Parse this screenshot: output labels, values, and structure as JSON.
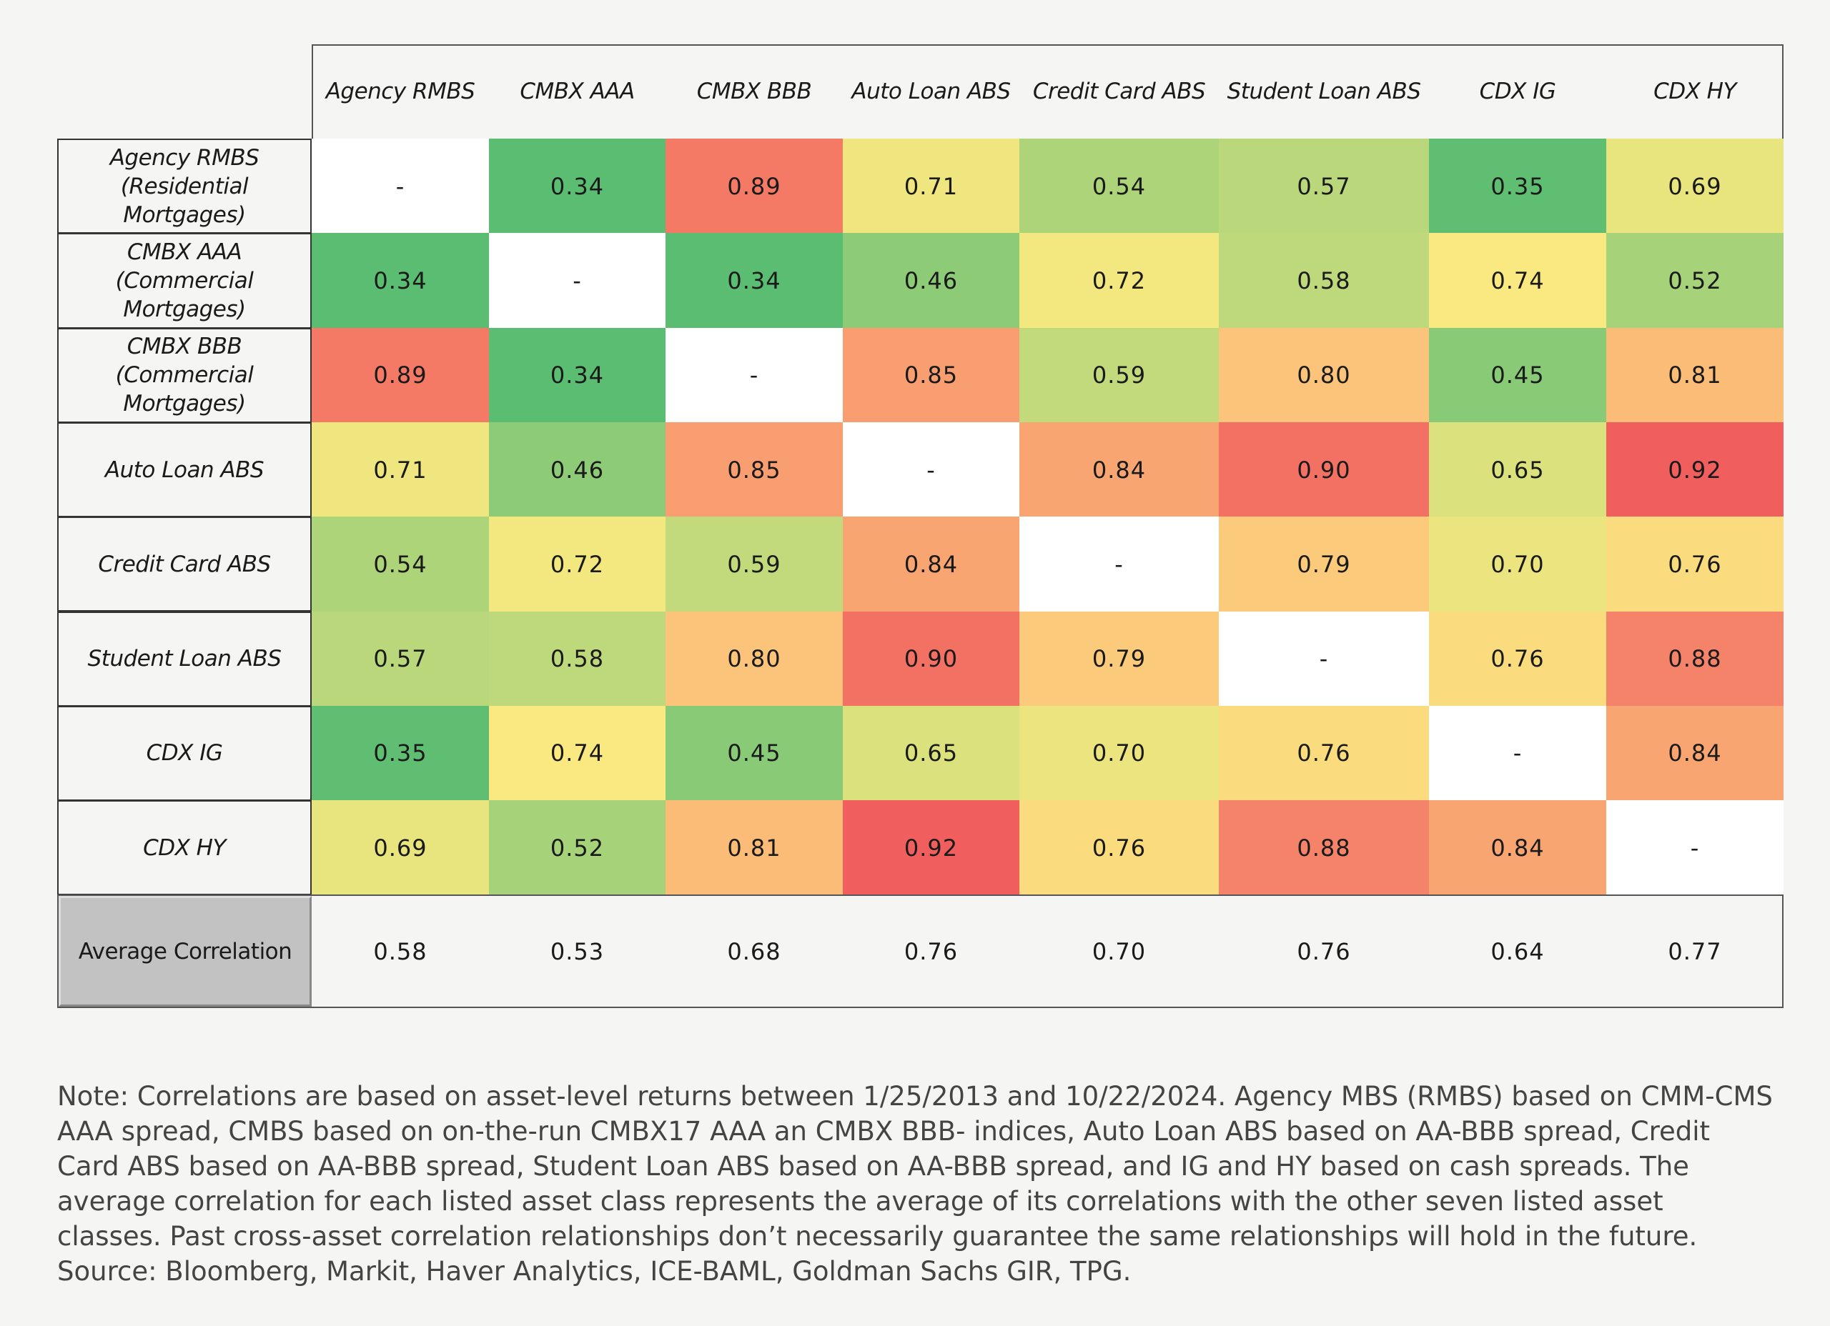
{
  "table": {
    "columns": [
      "Agency RMBS",
      "CMBX AAA",
      "CMBX BBB",
      "Auto Loan ABS",
      "Credit Card ABS",
      "Student Loan ABS",
      "CDX IG",
      "CDX HY"
    ],
    "rows": [
      {
        "label": "Agency RMBS (Residential Mortgages)",
        "cells": [
          "-",
          "0.34",
          "0.89",
          "0.71",
          "0.54",
          "0.57",
          "0.35",
          "0.69"
        ]
      },
      {
        "label": "CMBX AAA (Commercial Mortgages)",
        "cells": [
          "0.34",
          "-",
          "0.34",
          "0.46",
          "0.72",
          "0.58",
          "0.74",
          "0.52"
        ]
      },
      {
        "label": "CMBX BBB (Commercial Mortgages)",
        "cells": [
          "0.89",
          "0.34",
          "-",
          "0.85",
          "0.59",
          "0.80",
          "0.45",
          "0.81"
        ]
      },
      {
        "label": "Auto Loan ABS",
        "cells": [
          "0.71",
          "0.46",
          "0.85",
          "-",
          "0.84",
          "0.90",
          "0.65",
          "0.92"
        ]
      },
      {
        "label": "Credit Card ABS",
        "cells": [
          "0.54",
          "0.72",
          "0.59",
          "0.84",
          "-",
          "0.79",
          "0.70",
          "0.76"
        ]
      },
      {
        "label": "Student Loan ABS",
        "cells": [
          "0.57",
          "0.58",
          "0.80",
          "0.90",
          "0.79",
          "-",
          "0.76",
          "0.88"
        ]
      },
      {
        "label": "CDX IG",
        "cells": [
          "0.35",
          "0.74",
          "0.45",
          "0.65",
          "0.70",
          "0.76",
          "-",
          "0.84"
        ]
      },
      {
        "label": "CDX HY",
        "cells": [
          "0.69",
          "0.52",
          "0.81",
          "0.92",
          "0.76",
          "0.88",
          "0.84",
          "-"
        ]
      }
    ],
    "average": {
      "label": "Average Correlation",
      "cells": [
        "0.58",
        "0.53",
        "0.68",
        "0.76",
        "0.70",
        "0.76",
        "0.64",
        "0.77"
      ]
    }
  },
  "note": "Note: Correlations are based on asset-level returns between 1/25/2013 and 10/22/2024. Agency MBS (RMBS) based on CMM-CMS AAA spread, CMBS based on on-the-run CMBX17 AAA an CMBX BBB- indices, Auto Loan ABS based on AA-BBB spread, Credit Card ABS based on AA-BBB spread, Student Loan ABS based on AA-BBB spread, and IG and HY based on cash spreads. The average correlation for each listed asset class represents the average of its correlations with the other seven listed asset classes. Past cross-asset correlation relationships don’t necessarily guarantee the same relationships will hold in the future. Source: Bloomberg, Markit, Haver Analytics, ICE-BAML, Goldman Sachs GIR, TPG."
}
